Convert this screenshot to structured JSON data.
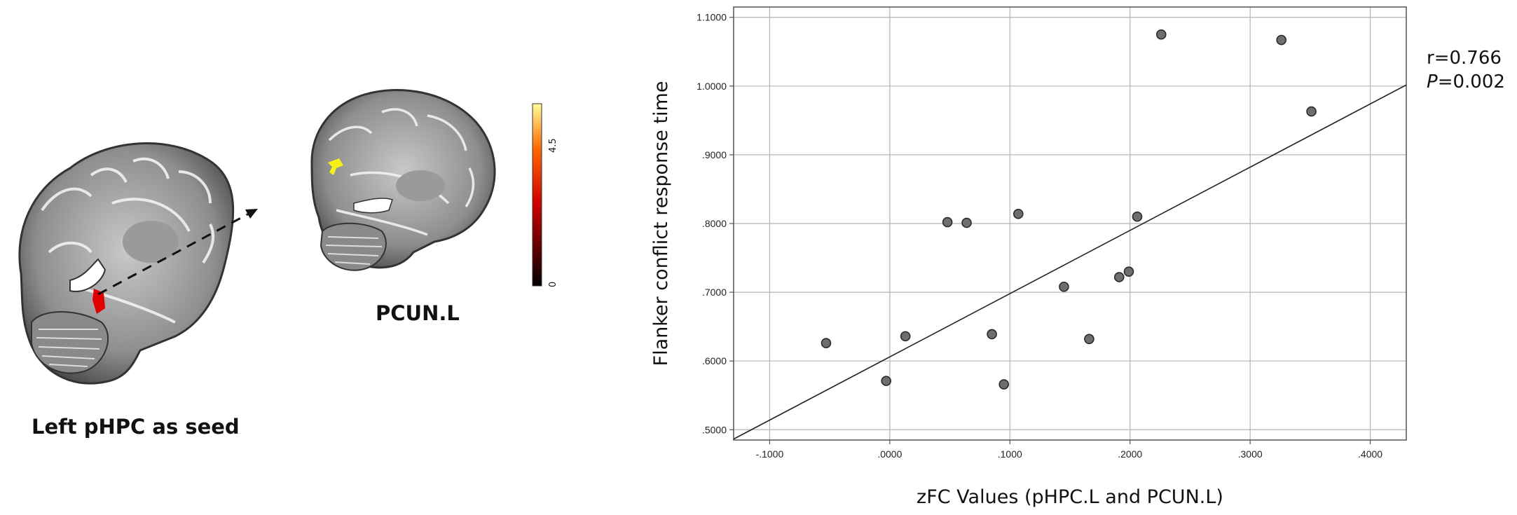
{
  "left_panel": {
    "seed_label": "Left pHPC as seed",
    "target_label": "PCUN.L",
    "colorbar": {
      "min_label": "0",
      "max_label": "4.5",
      "colors": [
        "#000000",
        "#cc0000",
        "#ff6600",
        "#ffff99"
      ]
    }
  },
  "stats": {
    "r_text": "r=0.766",
    "p_letter": "P",
    "p_value": "=0.002"
  },
  "chart_data": {
    "type": "scatter",
    "xlabel": "zFC Values (pHPC.L and PCUN.L)",
    "ylabel": "Flanker conflict response time",
    "xlim": [
      -0.13,
      0.43
    ],
    "ylim": [
      0.485,
      1.115
    ],
    "x_ticks": [
      -0.1,
      0.0,
      0.1,
      0.2,
      0.3,
      0.4
    ],
    "x_tick_labels": [
      "-.1000",
      ".0000",
      ".1000",
      ".2000",
      ".3000",
      ".4000"
    ],
    "y_ticks": [
      0.5,
      0.6,
      0.7,
      0.8,
      0.9,
      1.0,
      1.1
    ],
    "y_tick_labels": [
      ".5000",
      ".6000",
      ".7000",
      ".8000",
      ".9000",
      "1.0000",
      "1.1000"
    ],
    "grid": true,
    "points": [
      {
        "x": -0.053,
        "y": 0.626
      },
      {
        "x": -0.003,
        "y": 0.571
      },
      {
        "x": 0.013,
        "y": 0.636
      },
      {
        "x": 0.048,
        "y": 0.802
      },
      {
        "x": 0.064,
        "y": 0.801
      },
      {
        "x": 0.085,
        "y": 0.639
      },
      {
        "x": 0.095,
        "y": 0.566
      },
      {
        "x": 0.107,
        "y": 0.814
      },
      {
        "x": 0.145,
        "y": 0.708
      },
      {
        "x": 0.166,
        "y": 0.632
      },
      {
        "x": 0.191,
        "y": 0.722
      },
      {
        "x": 0.199,
        "y": 0.73
      },
      {
        "x": 0.206,
        "y": 0.81
      },
      {
        "x": 0.226,
        "y": 1.075
      },
      {
        "x": 0.326,
        "y": 1.067
      },
      {
        "x": 0.351,
        "y": 0.963
      }
    ],
    "fit_line": {
      "slope": 0.92,
      "intercept": 0.606
    }
  }
}
